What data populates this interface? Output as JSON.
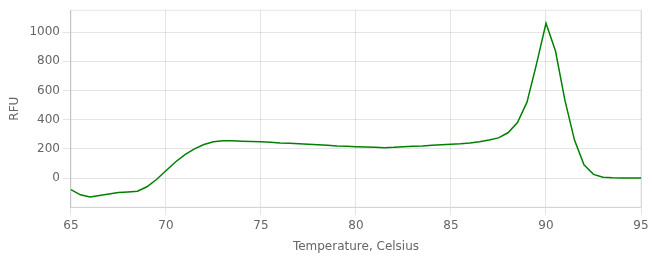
{
  "chart_data": {
    "type": "line",
    "x": [
      65.0,
      65.5,
      66.0,
      66.5,
      67.0,
      67.5,
      68.0,
      68.5,
      69.0,
      69.5,
      70.0,
      70.5,
      71.0,
      71.5,
      72.0,
      72.5,
      73.0,
      73.5,
      74.0,
      74.5,
      75.0,
      75.5,
      76.0,
      76.5,
      77.0,
      77.5,
      78.0,
      78.5,
      79.0,
      79.5,
      80.0,
      80.5,
      81.0,
      81.5,
      82.0,
      82.5,
      83.0,
      83.5,
      84.0,
      84.5,
      85.0,
      85.5,
      86.0,
      86.5,
      87.0,
      87.5,
      88.0,
      88.5,
      89.0,
      89.5,
      90.0,
      90.5,
      91.0,
      91.5,
      92.0,
      92.5,
      93.0,
      93.5,
      94.0,
      94.5,
      95.0
    ],
    "values": [
      -80,
      -115,
      -130,
      -120,
      -110,
      -100,
      -95,
      -90,
      -60,
      -10,
      50,
      110,
      160,
      200,
      230,
      248,
      255,
      255,
      252,
      250,
      248,
      245,
      240,
      238,
      235,
      232,
      228,
      225,
      220,
      218,
      215,
      212,
      210,
      208,
      210,
      215,
      218,
      220,
      225,
      228,
      232,
      235,
      240,
      248,
      260,
      275,
      310,
      380,
      520,
      780,
      1060,
      870,
      530,
      260,
      90,
      25,
      6,
      1,
      0,
      0,
      0
    ],
    "color": "#008000",
    "xlabel": "Temperature, Celsius",
    "ylabel": "RFU",
    "xlim": [
      65,
      95
    ],
    "ylim": [
      -200,
      1150
    ],
    "xticks": [
      65,
      70,
      75,
      80,
      85,
      90,
      95
    ],
    "yticks": [
      0,
      200,
      400,
      600,
      800,
      1000
    ],
    "grid": true
  }
}
